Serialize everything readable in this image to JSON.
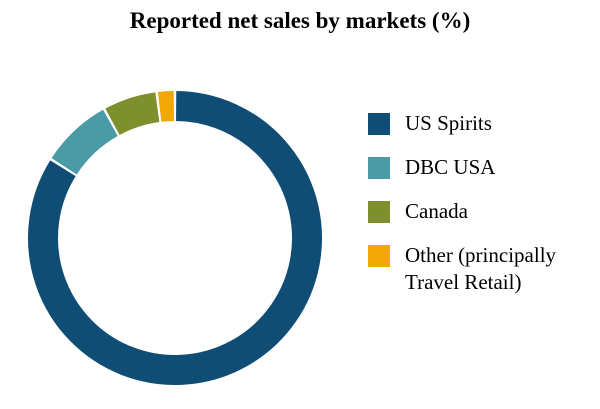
{
  "title": "Reported net sales by markets (%)",
  "chart_data": {
    "type": "pie",
    "subtype": "donut",
    "title": "Reported net sales by markets (%)",
    "categories": [
      "US Spirits",
      "DBC USA",
      "Canada",
      "Other (principally Travel Retail)"
    ],
    "values": [
      84,
      8,
      6,
      2
    ],
    "colors": [
      "#0f4d75",
      "#4a9ba6",
      "#7e8f2d",
      "#f2a804"
    ],
    "start_angle_deg": -90,
    "direction": "clockwise",
    "inner_radius_ratio": 0.8,
    "legend_position": "right",
    "grid": false
  },
  "legend": {
    "items": [
      {
        "label": "US Spirits",
        "color": "#0f4d75"
      },
      {
        "label": "DBC USA",
        "color": "#4a9ba6"
      },
      {
        "label": "Canada",
        "color": "#7e8f2d"
      },
      {
        "label": "Other (principally Travel Retail)",
        "color": "#f2a804"
      }
    ]
  }
}
